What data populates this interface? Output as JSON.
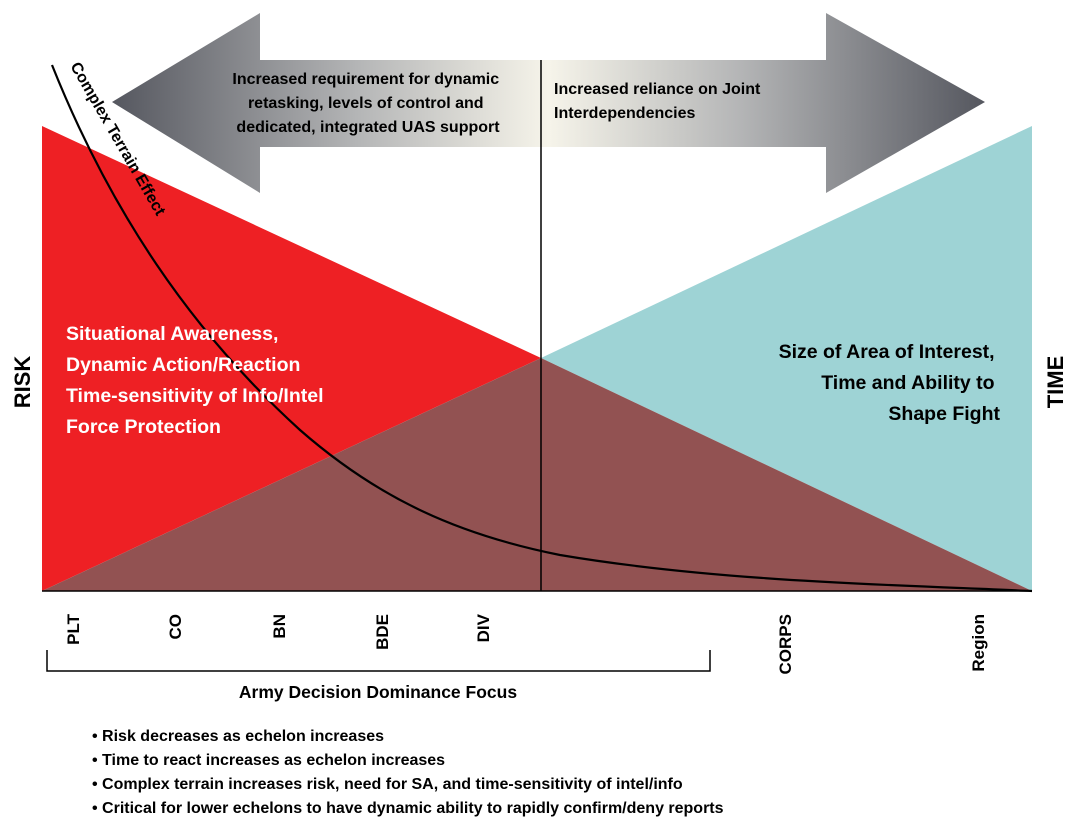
{
  "arrow": {
    "left_lines": [
      "Increased requirement for dynamic",
      "retasking, levels of control and",
      "dedicated, integrated UAS support"
    ],
    "right_lines": [
      "Increased reliance on Joint",
      "Interdependencies"
    ]
  },
  "curve_label": "Complex Terrain Effect",
  "red_region": {
    "lines": [
      "Situational Awareness,",
      "Dynamic Action/Reaction",
      "Time-sensitivity of Info/Intel",
      "Force Protection"
    ]
  },
  "teal_region": {
    "lines": [
      "Size of Area of Interest,",
      "Time and Ability to",
      "Shape Fight"
    ]
  },
  "axis": {
    "left": "RISK",
    "right": "TIME"
  },
  "echelons": [
    "PLT",
    "CO",
    "BN",
    "BDE",
    "DIV",
    "CORPS",
    "Region"
  ],
  "bracket_label": "Army Decision Dominance Focus",
  "bullets": [
    "• Risk decreases as echelon increases",
    "• Time to react increases as echelon increases",
    "• Complex terrain increases risk, need for SA, and time-sensitivity of intel/info",
    "• Critical for lower echelons to have dynamic ability to rapidly confirm/deny reports"
  ],
  "colors": {
    "red": "#ee2024",
    "teal": "#9ed3d5",
    "overlap": "#925252",
    "arrow_dark": "#5a5c64",
    "arrow_light": "#f6f4ea"
  }
}
